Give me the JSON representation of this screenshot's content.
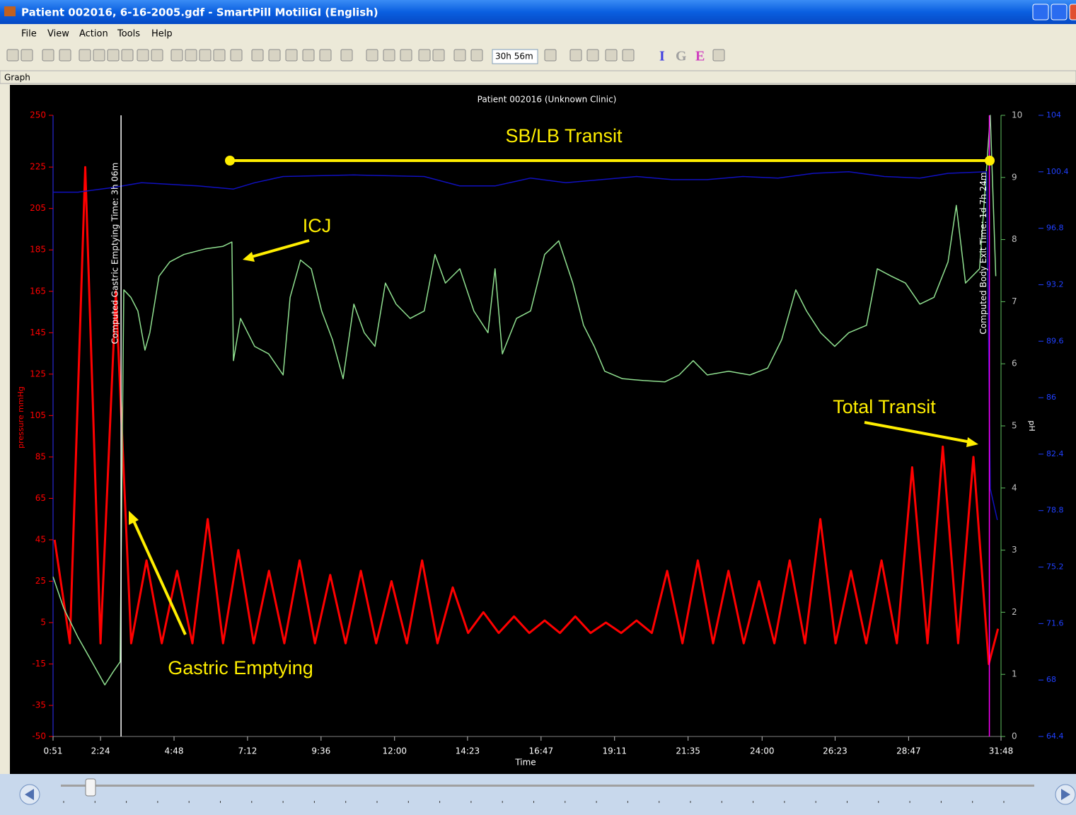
{
  "window": {
    "title": "Patient 002016, 6-16-2005.gdf - SmartPill MotiliGI (English)",
    "menu": [
      "File",
      "View",
      "Action",
      "Tools",
      "Help"
    ],
    "toolbar": {
      "zoom": "30h 56m",
      "letters": [
        "I",
        "G",
        "E"
      ]
    },
    "panel": "Graph"
  },
  "chart_data": {
    "type": "line",
    "title": "Patient 002016 (Unknown Clinic)",
    "x_label": "Time",
    "y_label": "pressure mmHg",
    "y2_label": "pH",
    "xlim": [
      0.85,
      31.8
    ],
    "xticks": [
      {
        "value": 0.85,
        "label": "0:51"
      },
      {
        "value": 2.4,
        "label": "2:24"
      },
      {
        "value": 4.8,
        "label": "4:48"
      },
      {
        "value": 7.2,
        "label": "7:12"
      },
      {
        "value": 9.6,
        "label": "9:36"
      },
      {
        "value": 12,
        "label": "12:00"
      },
      {
        "value": 14.383,
        "label": "14:23"
      },
      {
        "value": 16.783,
        "label": "16:47"
      },
      {
        "value": 19.183,
        "label": "19:11"
      },
      {
        "value": 21.583,
        "label": "21:35"
      },
      {
        "value": 24,
        "label": "24:00"
      },
      {
        "value": 26.383,
        "label": "26:23"
      },
      {
        "value": 28.783,
        "label": "28:47"
      },
      {
        "value": 31.8,
        "label": "31:48"
      }
    ],
    "ylim": [
      -50,
      250
    ],
    "yticks": [
      -50,
      -35,
      -15,
      5,
      25,
      45,
      65,
      85,
      105,
      125,
      145,
      165,
      185,
      205,
      225,
      250
    ],
    "y2lim": [
      0,
      10
    ],
    "y2ticks": [
      0,
      1,
      2,
      3,
      4,
      5,
      6,
      7,
      8,
      9,
      10
    ],
    "y3lim": [
      64.4,
      104
    ],
    "y3ticks": [
      64.4,
      68,
      71.6,
      75.2,
      78.8,
      82.4,
      86,
      89.6,
      93.2,
      96.8,
      100.4,
      104
    ],
    "series": [
      {
        "color": "#ff0000",
        "axis": "y",
        "x": [
          0.9,
          1.4,
          1.9,
          2.4,
          2.9,
          3.4,
          3.9,
          4.4,
          4.9,
          5.4,
          5.9,
          6.4,
          6.9,
          7.4,
          7.9,
          8.4,
          8.9,
          9.4,
          9.9,
          10.4,
          10.9,
          11.4,
          11.9,
          12.4,
          12.9,
          13.4,
          13.9,
          14.4,
          14.9,
          15.4,
          15.9,
          16.4,
          16.9,
          17.4,
          17.9,
          18.4,
          18.9,
          19.4,
          19.9,
          20.4,
          20.9,
          21.4,
          21.9,
          22.4,
          22.9,
          23.4,
          23.9,
          24.4,
          24.9,
          25.4,
          25.9,
          26.4,
          26.9,
          27.4,
          27.9,
          28.4,
          28.9,
          29.4,
          29.9,
          30.4,
          30.9,
          31.4,
          31.7
        ],
        "values": [
          45,
          -5,
          225,
          -5,
          165,
          -5,
          35,
          -5,
          30,
          -5,
          55,
          -5,
          40,
          -5,
          30,
          -5,
          35,
          -5,
          28,
          -5,
          30,
          -5,
          25,
          -5,
          35,
          -5,
          22,
          0,
          10,
          0,
          8,
          0,
          6,
          0,
          8,
          0,
          5,
          0,
          6,
          0,
          30,
          -5,
          35,
          -5,
          30,
          -5,
          25,
          -5,
          35,
          -5,
          55,
          -5,
          30,
          -5,
          35,
          -5,
          80,
          -5,
          90,
          -5,
          85,
          -15,
          2
        ]
      },
      {
        "color": "#90e090",
        "axis": "y2",
        "x": [
          0.85,
          1.2,
          1.66,
          2.12,
          2.54,
          2.81,
          3.04,
          3.16,
          3.39,
          3.62,
          3.85,
          4.01,
          4.31,
          4.66,
          5.12,
          5.82,
          6.39,
          6.69,
          6.74,
          6.97,
          7.43,
          7.89,
          8.36,
          8.59,
          8.93,
          9.28,
          9.62,
          9.97,
          10.32,
          10.67,
          11.01,
          11.36,
          11.7,
          12.05,
          12.51,
          12.97,
          13.32,
          13.66,
          14.13,
          14.59,
          15.05,
          15.28,
          15.52,
          15.98,
          16.44,
          16.9,
          17.36,
          17.82,
          18.17,
          18.52,
          18.86,
          19.44,
          20.13,
          20.83,
          21.29,
          21.75,
          22.21,
          22.91,
          23.6,
          24.18,
          24.64,
          25.1,
          25.45,
          25.91,
          26.37,
          26.83,
          27.41,
          27.76,
          28.22,
          28.68,
          29.15,
          29.61,
          30.07,
          30.34,
          30.64,
          31.1,
          31.45,
          31.63
        ],
        "values": [
          2.57,
          2.06,
          1.6,
          1.2,
          0.83,
          1.04,
          1.2,
          7.19,
          7.07,
          6.85,
          6.22,
          6.5,
          7.41,
          7.64,
          7.76,
          7.85,
          7.89,
          7.96,
          6.05,
          6.73,
          6.28,
          6.16,
          5.82,
          7.07,
          7.67,
          7.53,
          6.85,
          6.39,
          5.76,
          6.96,
          6.5,
          6.28,
          7.3,
          6.96,
          6.73,
          6.85,
          7.76,
          7.3,
          7.53,
          6.85,
          6.5,
          7.53,
          6.16,
          6.73,
          6.85,
          7.76,
          7.98,
          7.3,
          6.62,
          6.28,
          5.88,
          5.76,
          5.73,
          5.71,
          5.82,
          6.05,
          5.82,
          5.88,
          5.82,
          5.93,
          6.39,
          7.19,
          6.85,
          6.5,
          6.28,
          6.5,
          6.62,
          7.53,
          7.41,
          7.3,
          6.96,
          7.07,
          7.64,
          8.55,
          7.3,
          7.53,
          10,
          7.41
        ]
      },
      {
        "color": "#1010c0",
        "axis": "y3",
        "x": [
          0.85,
          1.66,
          2.81,
          3.74,
          5.58,
          6.74,
          7.43,
          8.36,
          10.67,
          12.97,
          14.13,
          15.28,
          16.44,
          17.59,
          18.75,
          19.9,
          21.06,
          22.21,
          23.37,
          24.52,
          25.68,
          26.83,
          27.99,
          29.15,
          30.07,
          31.33,
          31.45,
          31.68
        ],
        "values": [
          99.1,
          99.1,
          99.4,
          99.7,
          99.5,
          99.3,
          99.7,
          100.1,
          100.2,
          100.1,
          99.5,
          99.5,
          100,
          99.7,
          99.9,
          100.1,
          99.9,
          99.9,
          100.1,
          100,
          100.3,
          100.4,
          100.1,
          100,
          100.3,
          100.4,
          80.2,
          78.2
        ]
      }
    ],
    "markers": [
      {
        "label": "Computed Gastric Emptying Time: 3h 06m",
        "x": 3.07,
        "color": "#ffffff"
      },
      {
        "label": "Computed Body Exit Time: 1d 7h 24m",
        "x": 31.42,
        "color": "#ff00ff"
      }
    ],
    "annotations": [
      "SB/LB Transit",
      "ICJ",
      "Gastric Emptying",
      "Total Transit"
    ]
  }
}
